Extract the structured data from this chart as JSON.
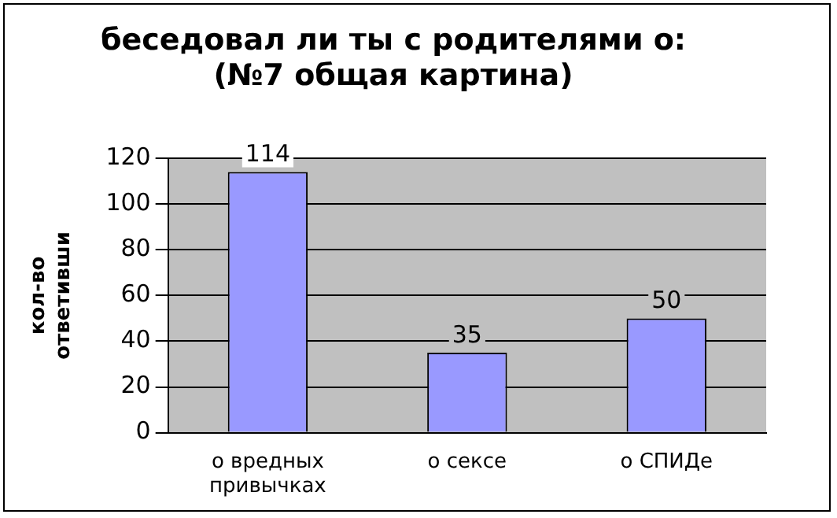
{
  "chart_data": {
    "type": "bar",
    "title": "беседовал ли ты с родителями о:\n(№7 общая картина)",
    "ylabel": "кол-во\nответивши",
    "categories": [
      "о вредных привычках",
      "о сексе",
      "о СПИДе"
    ],
    "values": [
      114,
      35,
      50
    ],
    "color": "#9999ff",
    "ylim": [
      0,
      120
    ],
    "yticks": [
      0,
      20,
      40,
      60,
      80,
      100,
      120
    ],
    "grid": "y",
    "data_labels": true,
    "legend": false
  }
}
